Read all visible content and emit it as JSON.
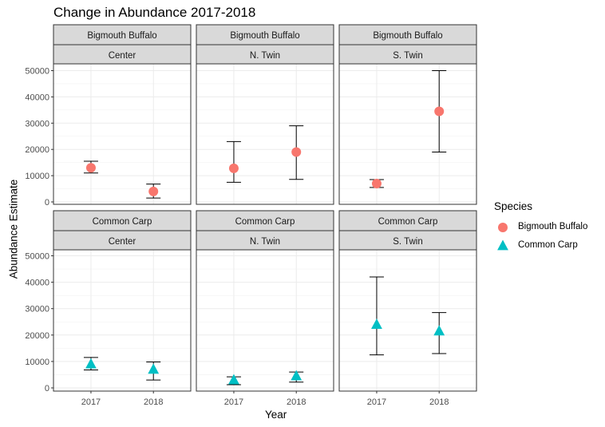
{
  "chart_data": {
    "type": "scatter",
    "title": "Change in Abundance 2017-2018",
    "xlabel": "Year",
    "ylabel": "Abundance Estimate",
    "x_categories": [
      "2017",
      "2018"
    ],
    "ylim": [
      0,
      52000
    ],
    "y_ticks": [
      0,
      10000,
      20000,
      30000,
      40000,
      50000
    ],
    "y_tick_labels": [
      "0",
      "10000",
      "20000",
      "30000",
      "40000",
      "50000"
    ],
    "grid": true,
    "legend": {
      "title": "Species",
      "position": "right",
      "entries": [
        {
          "name": "Bigmouth Buffalo",
          "color": "#F8766D",
          "shape": "circle"
        },
        {
          "name": "Common Carp",
          "color": "#00BFC4",
          "shape": "triangle"
        }
      ]
    },
    "panels": [
      {
        "species": "Bigmouth Buffalo",
        "site": "Center",
        "row": 0,
        "col": 0,
        "points": [
          {
            "x": "2017",
            "y": 13000,
            "lower": 11000,
            "upper": 15500
          },
          {
            "x": "2018",
            "y": 4000,
            "lower": 1500,
            "upper": 6800
          }
        ]
      },
      {
        "species": "Bigmouth Buffalo",
        "site": "N. Twin",
        "row": 0,
        "col": 1,
        "points": [
          {
            "x": "2017",
            "y": 12800,
            "lower": 7500,
            "upper": 23000
          },
          {
            "x": "2018",
            "y": 19000,
            "lower": 8600,
            "upper": 29000
          }
        ]
      },
      {
        "species": "Bigmouth Buffalo",
        "site": "S. Twin",
        "row": 0,
        "col": 2,
        "points": [
          {
            "x": "2017",
            "y": 7000,
            "lower": 5500,
            "upper": 8500
          },
          {
            "x": "2018",
            "y": 34500,
            "lower": 19000,
            "upper": 50000
          }
        ]
      },
      {
        "species": "Common Carp",
        "site": "Center",
        "row": 1,
        "col": 0,
        "points": [
          {
            "x": "2017",
            "y": 9000,
            "lower": 6800,
            "upper": 11500
          },
          {
            "x": "2018",
            "y": 7000,
            "lower": 3000,
            "upper": 9800
          }
        ]
      },
      {
        "species": "Common Carp",
        "site": "N. Twin",
        "row": 1,
        "col": 1,
        "points": [
          {
            "x": "2017",
            "y": 3000,
            "lower": 1200,
            "upper": 4200
          },
          {
            "x": "2018",
            "y": 4500,
            "lower": 2200,
            "upper": 6000
          }
        ]
      },
      {
        "species": "Common Carp",
        "site": "S. Twin",
        "row": 1,
        "col": 2,
        "points": [
          {
            "x": "2017",
            "y": 24000,
            "lower": 12500,
            "upper": 42000
          },
          {
            "x": "2018",
            "y": 21500,
            "lower": 13000,
            "upper": 28500
          }
        ]
      }
    ]
  }
}
